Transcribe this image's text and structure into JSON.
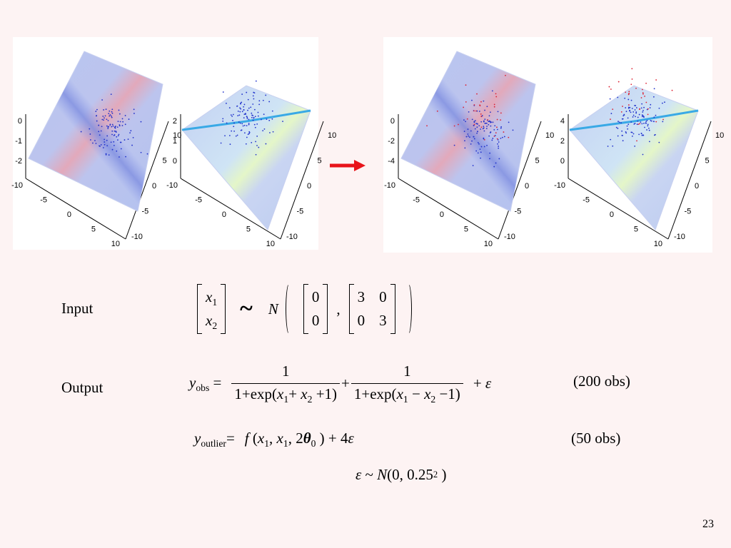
{
  "plots": [
    {
      "z_ticks": [
        "0",
        "-1",
        "-2"
      ],
      "x_ticks": [
        "-10",
        "-5",
        "0",
        "5",
        "10"
      ],
      "y_ticks": [
        "10",
        "5",
        "0",
        "-5",
        "-10"
      ]
    },
    {
      "z_ticks": [
        "2",
        "1",
        "0"
      ],
      "x_ticks": [
        "-10",
        "-5",
        "0",
        "5",
        "10"
      ],
      "y_ticks": [
        "10",
        "5",
        "0",
        "-5",
        "-10"
      ]
    },
    {
      "z_ticks": [
        "0",
        "-2",
        "-4"
      ],
      "x_ticks": [
        "-10",
        "-5",
        "0",
        "5",
        "10"
      ],
      "y_ticks": [
        "10",
        "5",
        "0",
        "-5",
        "-10"
      ]
    },
    {
      "z_ticks": [
        "4",
        "2",
        "0"
      ],
      "x_ticks": [
        "-10",
        "-5",
        "0",
        "5",
        "10"
      ],
      "y_ticks": [
        "10",
        "5",
        "0",
        "-5",
        "-10"
      ]
    }
  ],
  "input": {
    "label": "Input",
    "lhs": [
      [
        {
          "i": "x"
        },
        {
          "sub": "1"
        }
      ],
      [
        {
          "i": "x"
        },
        {
          "sub": "2"
        }
      ]
    ],
    "relation": "~",
    "dist": "N",
    "mean": [
      "0",
      "0"
    ],
    "sep": ",",
    "cov": [
      [
        "3",
        "0"
      ],
      [
        "0",
        "3"
      ]
    ]
  },
  "output": {
    "label": "Output",
    "lhs": [
      {
        "i": "y"
      },
      {
        "sub": "obs"
      },
      " ="
    ],
    "frac1": {
      "num": "1",
      "den": [
        "1+exp(",
        {
          "i": "x"
        },
        {
          "sub": "1"
        },
        "+ ",
        {
          "i": "x"
        },
        {
          "sub": "2"
        },
        " +1)"
      ]
    },
    "plus": "+",
    "frac2": {
      "num": "1",
      "den": [
        "1+exp(",
        {
          "i": "x"
        },
        {
          "sub": "1"
        },
        " − ",
        {
          "i": "x"
        },
        {
          "sub": "2"
        },
        " −1)"
      ]
    },
    "tail": [
      "+ ",
      {
        "i": "ε"
      }
    ],
    "note": "(200 obs)"
  },
  "outlier": {
    "lhs": [
      {
        "i": "y"
      },
      {
        "sub": "outlier"
      },
      "="
    ],
    "rhs": [
      {
        "i": "f"
      },
      " (",
      {
        "i": "x"
      },
      {
        "sub": "1"
      },
      ", ",
      {
        "i": "x"
      },
      {
        "sub": "1"
      },
      ", 2",
      {
        "b": "θ"
      },
      {
        "sub": "0"
      },
      " ) + 4",
      {
        "i": "ε"
      }
    ],
    "note": "(50 obs)"
  },
  "noise": [
    {
      "i": "ε"
    },
    " ~ ",
    {
      "i": "N"
    },
    "(0, 0.25",
    {
      "sup": "2"
    },
    " )"
  ],
  "page_number": "23"
}
